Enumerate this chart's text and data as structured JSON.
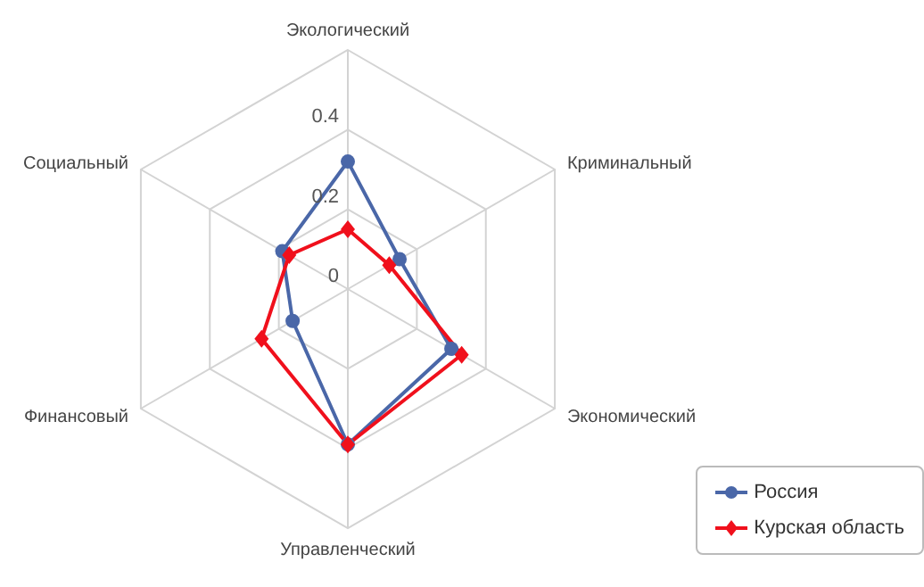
{
  "chart_data": {
    "type": "radar",
    "categories": [
      "Экологический",
      "Криминальный",
      "Экономический",
      "Управленческий",
      "Финансовый",
      "Социальный"
    ],
    "series": [
      {
        "name": "Россия",
        "color": "#4a67a8",
        "marker": "circle",
        "values": [
          0.32,
          0.15,
          0.3,
          0.39,
          0.16,
          0.19
        ]
      },
      {
        "name": "Курская область",
        "color": "#f0101c",
        "marker": "diamond",
        "values": [
          0.15,
          0.12,
          0.33,
          0.39,
          0.25,
          0.17
        ]
      }
    ],
    "ylim": [
      0,
      0.6
    ],
    "yticks": [
      0,
      0.2,
      0.4
    ],
    "grid": true,
    "legend": "bottom right"
  }
}
